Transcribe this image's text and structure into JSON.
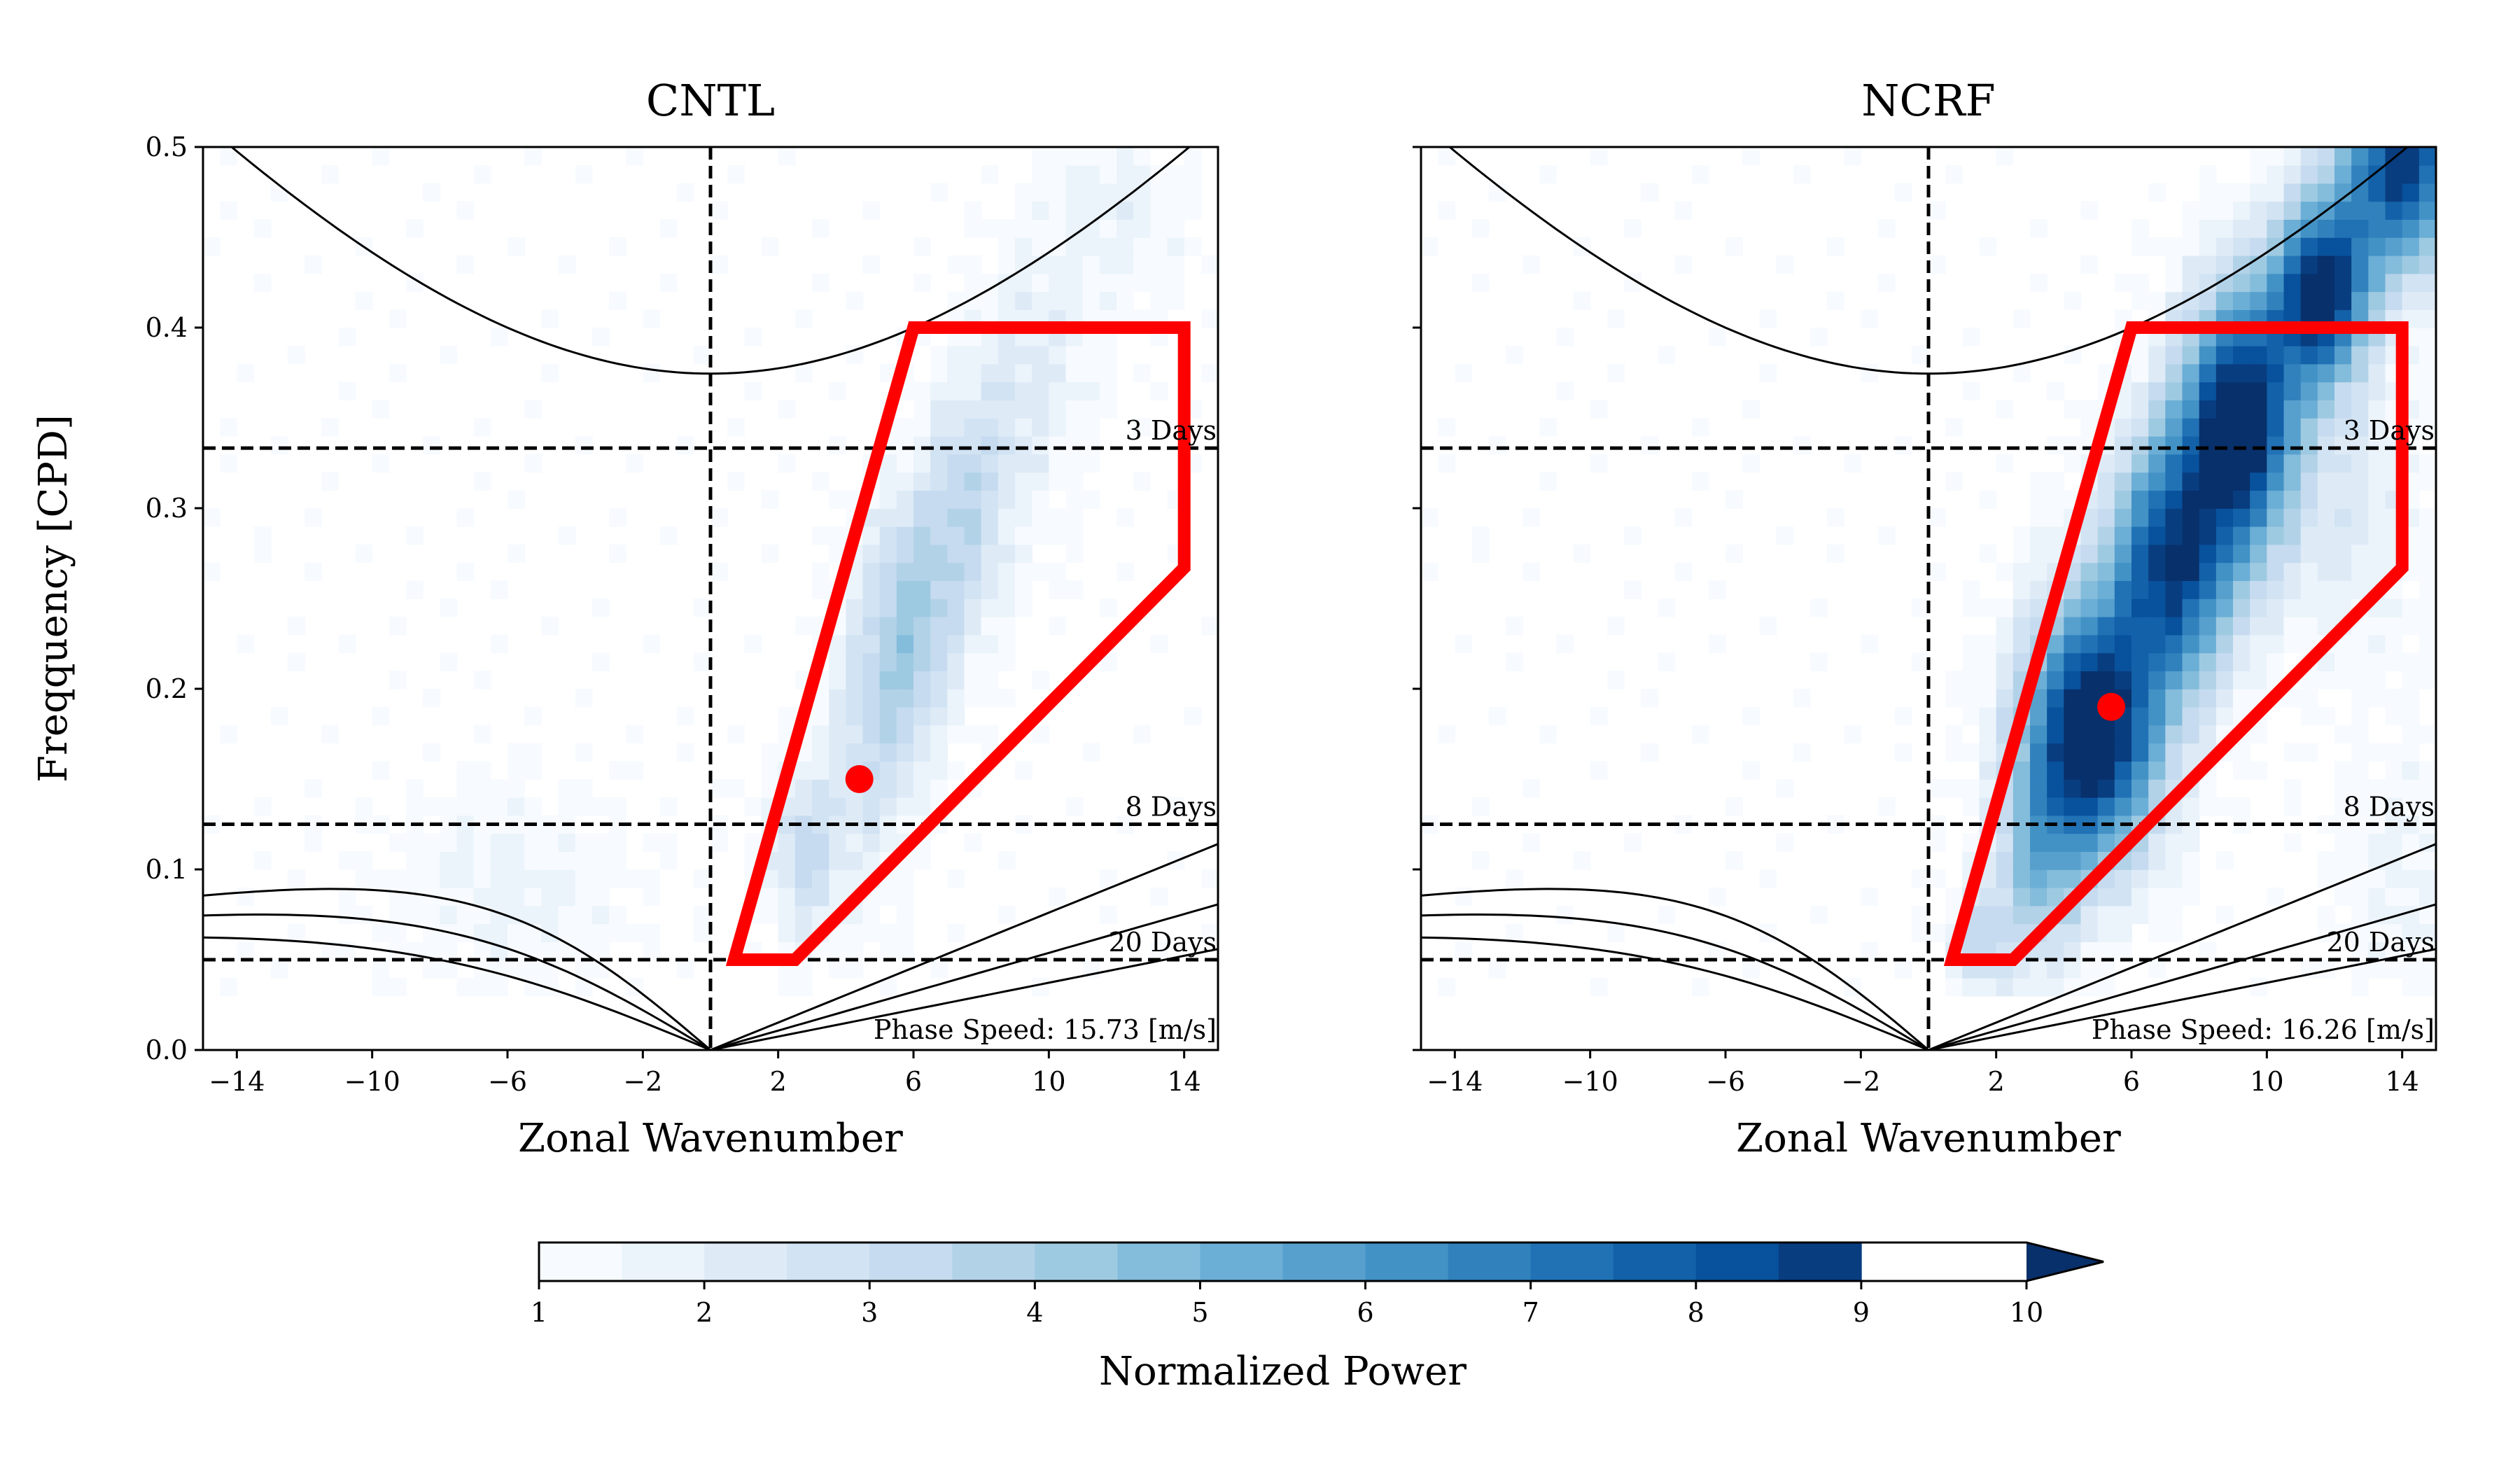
{
  "figure": {
    "colorbar": {
      "label": "Normalized Power",
      "min": 1,
      "max": 10,
      "step": 0.5,
      "ticks": [
        1,
        2,
        3,
        4,
        5,
        6,
        7,
        8,
        9,
        10
      ],
      "tick_labels": [
        "1",
        "2",
        "3",
        "4",
        "5",
        "6",
        "7",
        "8",
        "9",
        "10"
      ],
      "colors": [
        "#f7fbff",
        "#ebf3fb",
        "#deebf7",
        "#d2e3f3",
        "#c6dbef",
        "#b2d2e8",
        "#9ecae1",
        "#84bcdb",
        "#6baed6",
        "#57a0ce",
        "#4292c6",
        "#3181bd",
        "#2171b5",
        "#1361a8",
        "#08519c",
        "#083d80",
        "#08306b"
      ],
      "extend": "max"
    }
  },
  "chart_data": [
    {
      "type": "heatmap",
      "title": "CNTL",
      "xlabel": "Zonal Wavenumber",
      "ylabel": "Freqquency [CPD]",
      "xlim": [
        -15,
        15
      ],
      "ylim": [
        0,
        0.5
      ],
      "xticks": [
        -14,
        -10,
        -6,
        -2,
        2,
        6,
        10,
        14
      ],
      "xtick_labels": [
        "−14",
        "−10",
        "−6",
        "−2",
        "2",
        "6",
        "10",
        "14"
      ],
      "yticks": [
        0.0,
        0.1,
        0.2,
        0.3,
        0.4,
        0.5
      ],
      "ytick_labels": [
        "0.0",
        "0.1",
        "0.2",
        "0.3",
        "0.4",
        "0.5"
      ],
      "period_lines": [
        {
          "label": "3 Days",
          "frequency": 0.3333
        },
        {
          "label": "8 Days",
          "frequency": 0.125
        },
        {
          "label": "20 Days",
          "frequency": 0.05
        }
      ],
      "zero_wavenumber_line": 0,
      "selection_box": [
        [
          0.7,
          0.05
        ],
        [
          6.0,
          0.4
        ],
        [
          14.0,
          0.4
        ],
        [
          14.0,
          0.267
        ],
        [
          2.5,
          0.05
        ]
      ],
      "peak_point": {
        "x": 4.4,
        "y": 0.15
      },
      "phase_speed_text": "Phase Speed: 15.73 [m/s]",
      "power_features": [
        {
          "x": 2.8,
          "y": 0.11,
          "sx": 0.8,
          "sy": 0.035,
          "amp": 2.4
        },
        {
          "x": 4.8,
          "y": 0.18,
          "sx": 0.9,
          "sy": 0.06,
          "amp": 2.0
        },
        {
          "x": 6.0,
          "y": 0.24,
          "sx": 0.9,
          "sy": 0.05,
          "amp": 2.8
        },
        {
          "x": 7.6,
          "y": 0.3,
          "sx": 0.9,
          "sy": 0.05,
          "amp": 2.3
        },
        {
          "x": 9.5,
          "y": 0.37,
          "sx": 1.2,
          "sy": 0.05,
          "amp": 1.4
        },
        {
          "x": -6,
          "y": 0.09,
          "sx": 2.5,
          "sy": 0.04,
          "amp": 0.9
        },
        {
          "x": 12,
          "y": 0.46,
          "sx": 1.5,
          "sy": 0.04,
          "amp": 1.0
        }
      ]
    },
    {
      "type": "heatmap",
      "title": "NCRF",
      "xlabel": "Zonal Wavenumber",
      "ylabel": "",
      "xlim": [
        -15,
        15
      ],
      "ylim": [
        0,
        0.5
      ],
      "xticks": [
        -14,
        -10,
        -6,
        -2,
        2,
        6,
        10,
        14
      ],
      "xtick_labels": [
        "−14",
        "−10",
        "−6",
        "−2",
        "2",
        "6",
        "10",
        "14"
      ],
      "yticks": [
        0.0,
        0.1,
        0.2,
        0.3,
        0.4,
        0.5
      ],
      "ytick_labels": [
        "",
        "",
        "",
        "",
        "",
        ""
      ],
      "period_lines": [
        {
          "label": "3 Days",
          "frequency": 0.3333
        },
        {
          "label": "8 Days",
          "frequency": 0.125
        },
        {
          "label": "20 Days",
          "frequency": 0.05
        }
      ],
      "zero_wavenumber_line": 0,
      "selection_box": [
        [
          0.7,
          0.05
        ],
        [
          6.0,
          0.4
        ],
        [
          14.0,
          0.4
        ],
        [
          14.0,
          0.267
        ],
        [
          2.5,
          0.05
        ]
      ],
      "peak_point": {
        "x": 5.4,
        "y": 0.19
      },
      "phase_speed_text": "Phase Speed: 16.26 [m/s]",
      "power_features": [
        {
          "x": 4.8,
          "y": 0.175,
          "sx": 1.4,
          "sy": 0.05,
          "amp": 9.5
        },
        {
          "x": 3.2,
          "y": 0.1,
          "sx": 0.9,
          "sy": 0.04,
          "amp": 3.0
        },
        {
          "x": 1.5,
          "y": 0.06,
          "sx": 0.6,
          "sy": 0.02,
          "amp": 2.5
        },
        {
          "x": 7.2,
          "y": 0.27,
          "sx": 1.3,
          "sy": 0.05,
          "amp": 7.5
        },
        {
          "x": 9.2,
          "y": 0.35,
          "sx": 1.2,
          "sy": 0.05,
          "amp": 9.0
        },
        {
          "x": 11.6,
          "y": 0.42,
          "sx": 1.0,
          "sy": 0.035,
          "amp": 8.5
        },
        {
          "x": 14.0,
          "y": 0.49,
          "sx": 1.3,
          "sy": 0.04,
          "amp": 8.0
        },
        {
          "x": 12.5,
          "y": 0.3,
          "sx": 1.6,
          "sy": 0.06,
          "amp": 1.3
        },
        {
          "x": 14,
          "y": 0.1,
          "sx": 1.3,
          "sy": 0.05,
          "amp": 0.9
        }
      ]
    }
  ]
}
